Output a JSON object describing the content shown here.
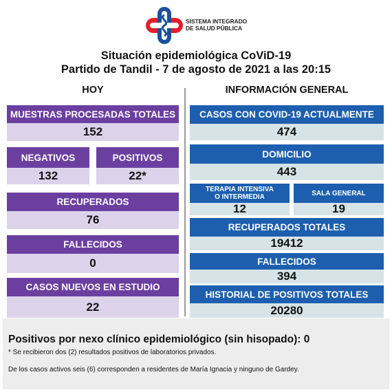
{
  "logo": {
    "line1": "SISTEMA INTEGRADO",
    "line2": "DE SALUD PÚBLICA"
  },
  "title": {
    "line1": "Situación epidemiológica CoViD-19",
    "line2": "Partido de Tandil - 7 de agosto de 2021 a las 20:15"
  },
  "hoy": {
    "heading": "HOY",
    "muestras_label": "MUESTRAS PROCESADAS TOTALES",
    "muestras_value": "152",
    "negativos_label": "NEGATIVOS",
    "negativos_value": "132",
    "positivos_label": "POSITIVOS",
    "positivos_value": "22*",
    "recuperados_label": "RECUPERADOS",
    "recuperados_value": "76",
    "fallecidos_label": "FALLECIDOS",
    "fallecidos_value": "0",
    "casos_nuevos_label": "CASOS NUEVOS EN ESTUDIO",
    "casos_nuevos_value": "22"
  },
  "general": {
    "heading": "INFORMACIÓN GENERAL",
    "casos_actuales_label": "CASOS CON COVID-19 ACTUALMENTE",
    "casos_actuales_value": "474",
    "domicilio_label": "DOMICILIO",
    "domicilio_value": "443",
    "terapia_label_1": "TERAPIA INTENSIVA",
    "terapia_label_2": "O INTERMEDIA",
    "terapia_value": "12",
    "sala_label": "SALA GENERAL",
    "sala_value": "19",
    "recuperados_totales_label": "RECUPERADOS TOTALES",
    "recuperados_totales_value": "19412",
    "fallecidos_label": "FALLECIDOS",
    "fallecidos_value": "394",
    "historial_label": "HISTORIAL DE POSITIVOS TOTALES",
    "historial_value": "20280"
  },
  "footer": {
    "title": "Positivos por nexo clínico epidemiológico (sin hisopado): 0",
    "note1": "* Se recibieron dos (2) resultados positivos de laboratorios privados.",
    "note2": "De los casos activos seis (6) corresponden a residentes de María Ignacia y ninguno de Gardey."
  },
  "colors": {
    "purple_header": "#6b3fa0",
    "purple_value": "#dcd3eb",
    "blue_header": "#1d5fae",
    "blue_value": "#d6e3e7",
    "logo_red": "#e3202a",
    "logo_blue": "#1d4f9c"
  }
}
